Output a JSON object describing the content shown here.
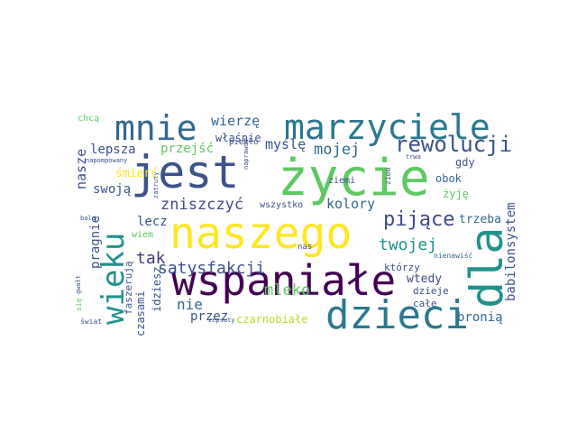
{
  "words": [
    {
      "text": "jest",
      "color": "#3b528b"
    },
    {
      "text": "życie",
      "color": "#5ec962"
    },
    {
      "text": "naszego",
      "color": "#fde725"
    },
    {
      "text": "wspaniałe",
      "color": "#440154"
    },
    {
      "text": "marzyciele",
      "color": "#2a788e"
    },
    {
      "text": "mnie",
      "color": "#31688e"
    },
    {
      "text": "dla",
      "color": "#21918c"
    },
    {
      "text": "wieku",
      "color": "#21918c"
    },
    {
      "text": "dzieci",
      "color": "#2a788e"
    },
    {
      "text": "rewolucji",
      "color": "#3b528b"
    },
    {
      "text": "pijące",
      "color": "#3e4989"
    },
    {
      "text": "satysfakcji",
      "color": "#3b528b"
    },
    {
      "text": "mleko",
      "color": "#5ec962"
    },
    {
      "text": "twojej",
      "color": "#21918c"
    },
    {
      "text": "zniszczyć",
      "color": "#3e4989"
    },
    {
      "text": "mojej",
      "color": "#31688e"
    },
    {
      "text": "wierzę",
      "color": "#31688e"
    },
    {
      "text": "myślę",
      "color": "#3b528b"
    },
    {
      "text": "przejść",
      "color": "#5ec962"
    },
    {
      "text": "lepsza",
      "color": "#3b528b"
    },
    {
      "text": "nasze",
      "color": "#3b528b"
    },
    {
      "text": "swoją",
      "color": "#3b528b"
    },
    {
      "text": "śmierć",
      "color": "#fde725"
    },
    {
      "text": "kolory",
      "color": "#31688e"
    },
    {
      "text": "lecz",
      "color": "#3b528b"
    },
    {
      "text": "tak",
      "color": "#443983"
    },
    {
      "text": "nie",
      "color": "#31688e"
    },
    {
      "text": "przez",
      "color": "#3b528b"
    },
    {
      "text": "czarnobiałe",
      "color": "#b5de2b"
    },
    {
      "text": "bronią",
      "color": "#31688e"
    },
    {
      "text": "babilonsystem",
      "color": "#3b528b"
    },
    {
      "text": "trzeba",
      "color": "#31688e"
    },
    {
      "text": "gdy",
      "color": "#3b528b"
    },
    {
      "text": "obok",
      "color": "#31688e"
    },
    {
      "text": "żyję",
      "color": "#5ec962"
    },
    {
      "text": "wtedy",
      "color": "#3e4989"
    },
    {
      "text": "dzieje",
      "color": "#3b528b"
    },
    {
      "text": "całe",
      "color": "#3b528b"
    },
    {
      "text": "którzy",
      "color": "#3b528b"
    },
    {
      "text": "nienawiść",
      "color": "#31688e"
    },
    {
      "text": "pragnie",
      "color": "#3b528b"
    },
    {
      "text": "czasami",
      "color": "#3b528b"
    },
    {
      "text": "idziesz",
      "color": "#3b528b"
    },
    {
      "text": "faszerują",
      "color": "#3b528b"
    },
    {
      "text": "wiem",
      "color": "#5ec962"
    },
    {
      "text": "właśnie",
      "color": "#3b528b"
    },
    {
      "text": "piekło",
      "color": "#3b528b"
    },
    {
      "text": "chcą",
      "color": "#5ec962"
    },
    {
      "text": "napompowany",
      "color": "#3b528b"
    },
    {
      "text": "zatruty",
      "color": "#3b528b"
    },
    {
      "text": "naprawdę",
      "color": "#3b528b"
    },
    {
      "text": "wszystko",
      "color": "#3b528b"
    },
    {
      "text": "ziemi",
      "color": "#3b528b"
    },
    {
      "text": "ziem",
      "color": "#3b528b"
    },
    {
      "text": "trwa",
      "color": "#3b528b"
    },
    {
      "text": "nas",
      "color": "#3b528b"
    },
    {
      "text": "zepsuty",
      "color": "#3b528b"
    },
    {
      "text": "balon",
      "color": "#3b528b"
    },
    {
      "text": "gwałt",
      "color": "#3b528b"
    },
    {
      "text": "się",
      "color": "#5ec962"
    },
    {
      "text": "świat",
      "color": "#3b528b"
    }
  ]
}
